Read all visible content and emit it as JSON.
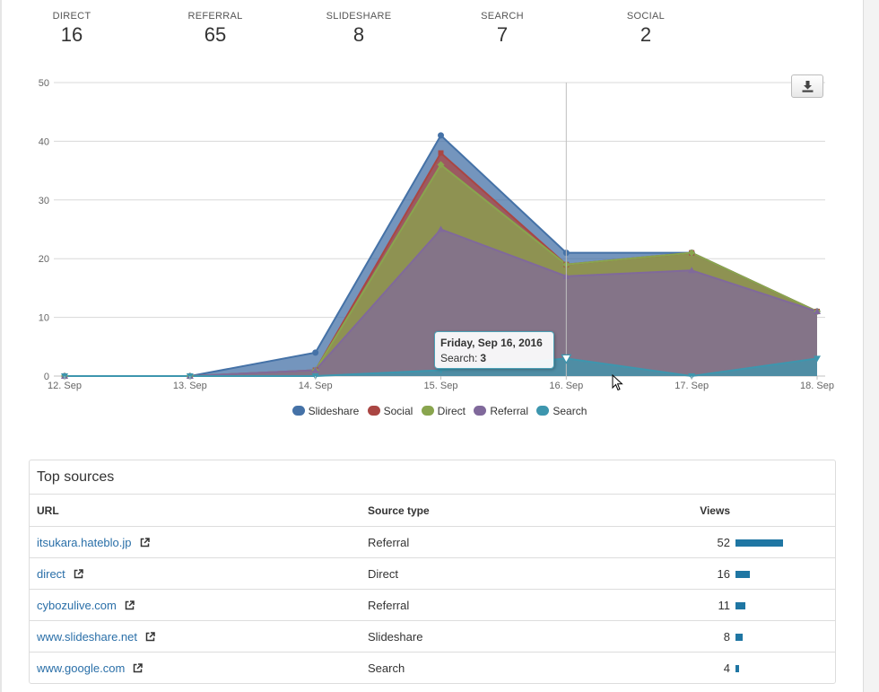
{
  "stats": [
    {
      "label": "DIRECT",
      "value": "16"
    },
    {
      "label": "REFERRAL",
      "value": "65"
    },
    {
      "label": "SLIDESHARE",
      "value": "8"
    },
    {
      "label": "SEARCH",
      "value": "7"
    },
    {
      "label": "SOCIAL",
      "value": "2"
    }
  ],
  "chart_data": {
    "type": "area",
    "stacked": true,
    "title": "",
    "xlabel": "",
    "ylabel": "",
    "ylim": [
      0,
      50
    ],
    "yticks": [
      0,
      10,
      20,
      30,
      40,
      50
    ],
    "grid": true,
    "legend_position": "bottom",
    "categories": [
      "12. Sep",
      "13. Sep",
      "14. Sep",
      "15. Sep",
      "16. Sep",
      "17. Sep",
      "18. Sep"
    ],
    "series": [
      {
        "name": "Slideshare",
        "color": "#4572a7",
        "values": [
          0,
          0,
          3,
          3,
          2,
          0,
          0
        ]
      },
      {
        "name": "Social",
        "color": "#aa4643",
        "values": [
          0,
          0,
          0,
          2,
          0,
          0,
          0
        ]
      },
      {
        "name": "Direct",
        "color": "#89a54e",
        "values": [
          0,
          0,
          0,
          11,
          2,
          3,
          0
        ]
      },
      {
        "name": "Referral",
        "color": "#80699b",
        "values": [
          0,
          0,
          1,
          24,
          14,
          18,
          8
        ]
      },
      {
        "name": "Search",
        "color": "#3d96ae",
        "values": [
          0,
          0,
          0,
          1,
          3,
          0,
          3
        ]
      }
    ]
  },
  "chart": {
    "download_label": "Download chart",
    "tooltip": {
      "date": "Friday, Sep 16, 2016",
      "series": "Search:",
      "value": "3"
    }
  },
  "top_sources": {
    "title": "Top sources",
    "columns": {
      "url": "URL",
      "type": "Source type",
      "views": "Views"
    },
    "max_views": 52,
    "rows": [
      {
        "url": "itsukara.hateblo.jp",
        "type": "Referral",
        "views": 52
      },
      {
        "url": "direct",
        "type": "Direct",
        "views": 16
      },
      {
        "url": "cybozulive.com",
        "type": "Referral",
        "views": 11
      },
      {
        "url": "www.slideshare.net",
        "type": "Slideshare",
        "views": 8
      },
      {
        "url": "www.google.com",
        "type": "Search",
        "views": 4
      }
    ]
  }
}
